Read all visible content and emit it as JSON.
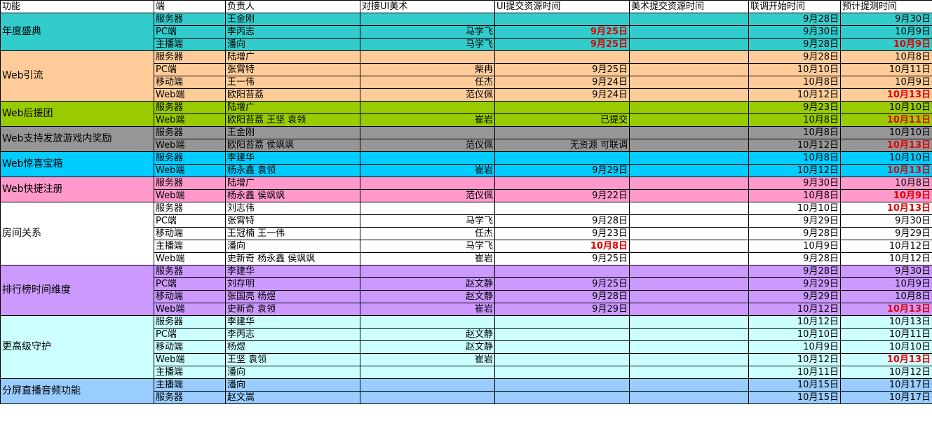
{
  "colors": {
    "turquoise": "#33cccc",
    "peach": "#ffcc99",
    "green": "#99cc00",
    "gray": "#969696",
    "skyblue": "#00ccff",
    "pink": "#ff99cc",
    "white": "#ffffff",
    "lavender": "#cc99ff",
    "lightcyan": "#ccffff",
    "lightblue": "#99ccff",
    "highlight_red": "#e00000"
  },
  "headers": [
    "功能",
    "端",
    "负责人",
    "对接UI美术",
    "UI提交资源时间",
    "美术提交资源时间",
    "联调开始时间",
    "预计提测时间"
  ],
  "groups": [
    {
      "feature": "年度盛典",
      "color": "turquoise",
      "rows": [
        {
          "end": "服务器",
          "owner": "王金刚",
          "artist": "",
          "ui_time": "",
          "art_time": "",
          "start": "9月28日",
          "test": "9月30日"
        },
        {
          "end": "PC端",
          "owner": "李丙志",
          "artist": "马学飞",
          "ui_time": "9月25日",
          "ui_red": true,
          "art_time": "",
          "start": "9月30日",
          "test": "10月9日"
        },
        {
          "end": "主播端",
          "owner": "潘向",
          "artist": "马学飞",
          "ui_time": "9月25日",
          "ui_red": true,
          "art_time": "",
          "start": "9月28日",
          "test": "10月9日",
          "test_red": true
        }
      ]
    },
    {
      "feature": "Web引流",
      "color": "peach",
      "rows": [
        {
          "end": "服务器",
          "owner": "陆增广",
          "artist": "",
          "ui_time": "",
          "art_time": "",
          "start": "9月28日",
          "test": "10月8日"
        },
        {
          "end": "PC端",
          "owner": "张霄特",
          "artist": "柴冉",
          "ui_time": "9月25日",
          "art_time": "",
          "start": "10月10日",
          "test": "10月11日"
        },
        {
          "end": "移动端",
          "owner": "王一伟",
          "artist": "任杰",
          "ui_time": "9月24日",
          "art_time": "",
          "start": "10月8日",
          "test": "10月9日"
        },
        {
          "end": "Web端",
          "owner": "欧阳苔荔",
          "artist": "范仪佩",
          "ui_time": "9月24日",
          "art_time": "",
          "start": "10月12日",
          "test": "10月13日",
          "test_red": true
        }
      ]
    },
    {
      "feature": "Web后援团",
      "color": "green",
      "rows": [
        {
          "end": "服务器",
          "owner": "陆增广",
          "artist": "",
          "ui_time": "",
          "art_time": "",
          "start": "9月23日",
          "test": "10月10日"
        },
        {
          "end": "Web端",
          "owner": "欧阳苔荔 王坚 袁领",
          "artist": "崔岩",
          "ui_time": "已提交",
          "art_time": "",
          "start": "10月8日",
          "test": "10月11日",
          "test_red": true
        }
      ]
    },
    {
      "feature": "Web支持发放游戏内奖励",
      "color": "gray",
      "rows": [
        {
          "end": "服务器",
          "owner": "王金刚",
          "artist": "",
          "ui_time": "",
          "art_time": "",
          "start": "10月8日",
          "test": "10月10日"
        },
        {
          "end": "Web端",
          "owner": "欧阳苔荔 侯飒飒",
          "artist": "范仪佩",
          "ui_time": "无资源 可联调",
          "art_time": "",
          "start": "10月12日",
          "test": "10月13日",
          "test_red": true
        }
      ]
    },
    {
      "feature": "Web惊喜宝箱",
      "color": "skyblue",
      "rows": [
        {
          "end": "服务器",
          "owner": "李建华",
          "artist": "",
          "ui_time": "",
          "art_time": "",
          "start": "10月8日",
          "test": "10月10日"
        },
        {
          "end": "Web端",
          "owner": "杨永鑫 袁领",
          "artist": "崔岩",
          "ui_time": "9月29日",
          "art_time": "",
          "start": "10月12日",
          "test": "10月13日",
          "test_red": true
        }
      ]
    },
    {
      "feature": "Web快捷注册",
      "color": "pink",
      "rows": [
        {
          "end": "服务器",
          "owner": "陆增广",
          "artist": "",
          "ui_time": "",
          "art_time": "",
          "start": "9月30日",
          "test": "10月8日"
        },
        {
          "end": "Web端",
          "owner": "杨永鑫 侯飒飒",
          "artist": "范仪佩",
          "ui_time": "9月22日",
          "art_time": "",
          "start": "10月8日",
          "test": "10月9日",
          "test_red": true
        }
      ]
    },
    {
      "feature": "房间关系",
      "color": "white",
      "rows": [
        {
          "end": "服务器",
          "owner": "刘志伟",
          "artist": "",
          "ui_time": "",
          "art_time": "",
          "start": "10月10日",
          "test": "10月13日",
          "test_red": true
        },
        {
          "end": "PC端",
          "owner": "张霄特",
          "artist": "马学飞",
          "ui_time": "9月28日",
          "art_time": "",
          "start": "9月29日",
          "test": "9月30日"
        },
        {
          "end": "移动端",
          "owner": "王冠楠 王一伟",
          "artist": "任杰",
          "ui_time": "9月23日",
          "art_time": "",
          "start": "9月28日",
          "test": "9月29日"
        },
        {
          "end": "主播端",
          "owner": "潘向",
          "artist": "马学飞",
          "ui_time": "10月8日",
          "ui_red": true,
          "art_time": "",
          "start": "10月9日",
          "test": "10月12日"
        },
        {
          "end": "Web端",
          "owner": "史新奇 杨永鑫 侯飒飒",
          "artist": "崔岩",
          "ui_time": "9月25日",
          "art_time": "",
          "start": "9月28日",
          "test": "10月12日"
        }
      ]
    },
    {
      "feature": "排行榜时间维度",
      "color": "lavender",
      "rows": [
        {
          "end": "服务器",
          "owner": "李建华",
          "artist": "",
          "ui_time": "",
          "art_time": "",
          "start": "9月28日",
          "test": "9月30日"
        },
        {
          "end": "PC端",
          "owner": "刘存明",
          "artist": "赵文静",
          "ui_time": "9月25日",
          "art_time": "",
          "start": "9月29日",
          "test": "10月9日"
        },
        {
          "end": "移动端",
          "owner": "张国亮 杨煜",
          "artist": "赵文静",
          "ui_time": "9月28日",
          "art_time": "",
          "start": "9月29日",
          "test": "10月8日"
        },
        {
          "end": "Web端",
          "owner": "史新奇 袁领",
          "artist": "崔岩",
          "ui_time": "9月29日",
          "art_time": "",
          "start": "10月12日",
          "test": "10月13日",
          "test_red": true
        }
      ]
    },
    {
      "feature": "更高级守护",
      "color": "lightcyan",
      "rows": [
        {
          "end": "服务器",
          "owner": "李建华",
          "artist": "",
          "ui_time": "",
          "art_time": "",
          "start": "10月12日",
          "test": "10月13日"
        },
        {
          "end": "PC端",
          "owner": "李丙志",
          "artist": "赵文静",
          "ui_time": "",
          "art_time": "",
          "start": "10月10日",
          "test": "10月11日"
        },
        {
          "end": "移动端",
          "owner": "杨煜",
          "artist": "赵文静",
          "ui_time": "",
          "art_time": "",
          "start": "10月9日",
          "test": "10月10日"
        },
        {
          "end": "Web端",
          "owner": "王坚 袁领",
          "artist": "崔岩",
          "ui_time": "",
          "art_time": "",
          "start": "10月12日",
          "test": "10月13日",
          "test_red": true
        },
        {
          "end": "主播端",
          "owner": "潘向",
          "artist": "",
          "ui_time": "",
          "art_time": "",
          "start": "10月11日",
          "test": "10月12日"
        }
      ]
    },
    {
      "feature": "分屏直播音频功能",
      "color": "lightblue",
      "rows": [
        {
          "end": "主播端",
          "owner": "潘向",
          "artist": "",
          "ui_time": "",
          "art_time": "",
          "start": "10月15日",
          "test": "10月17日"
        },
        {
          "end": "服务器",
          "owner": "赵文嵩",
          "artist": "",
          "ui_time": "",
          "art_time": "",
          "start": "10月15日",
          "test": "10月17日"
        }
      ]
    }
  ]
}
